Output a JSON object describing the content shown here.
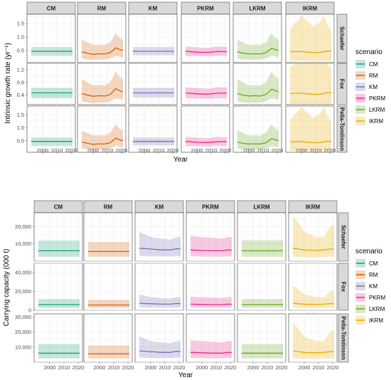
{
  "colors": {
    "CM": "#1b9e77",
    "RM": "#d95f02",
    "KM": "#7570b3",
    "PKRM": "#e7298a",
    "LKRM": "#66a61e",
    "IKRM": "#e6ab02"
  },
  "chart_data": [
    {
      "type": "line",
      "facet_columns": [
        "CM",
        "RM",
        "KM",
        "PKRM",
        "LKRM",
        "IKRM"
      ],
      "facet_rows": [
        "Schaefer",
        "Fox",
        "Pella-Tomlinson"
      ],
      "xlabel": "Year",
      "ylabel": "Intrinsic growth rate (yr⁻¹)",
      "x_ticks": [
        2000,
        2010,
        2020
      ],
      "x_range": [
        1989,
        2023
      ],
      "legend": {
        "title": "scenario",
        "entries": [
          "CM",
          "RM",
          "KM",
          "PKRM",
          "LKRM",
          "IKRM"
        ],
        "placement": "right"
      },
      "rows": [
        {
          "row": "Schaefer",
          "y_range": [
            0.05,
            1.85
          ],
          "y_ticks": [
            0.5,
            1.0,
            1.5
          ],
          "y_tick_labels": [
            "0.5",
            "1.0",
            "1.5"
          ]
        },
        {
          "row": "Fox",
          "y_range": [
            0.1,
            1.4
          ],
          "y_ticks": [
            0.4,
            0.8,
            1.2
          ],
          "y_tick_labels": [
            "0.4",
            "0.8",
            "1.2"
          ]
        },
        {
          "row": "Pella-Tomlinson",
          "y_range": [
            0.05,
            1.85
          ],
          "y_ticks": [
            0.5,
            1.0,
            1.5
          ],
          "y_tick_labels": [
            "0.5",
            "1.0",
            "1.5"
          ]
        }
      ],
      "series": [
        {
          "name": "CM",
          "x": [
            1992,
            2021
          ],
          "mean": [
            0.47,
            0.47
          ],
          "lower": [
            0.3,
            0.3
          ],
          "upper": [
            0.63,
            0.63
          ]
        },
        {
          "name": "RM",
          "x": [
            1992,
            1996,
            2000,
            2004,
            2008,
            2012,
            2016,
            2018,
            2021
          ],
          "mean": [
            0.45,
            0.4,
            0.36,
            0.38,
            0.37,
            0.42,
            0.6,
            0.55,
            0.5
          ],
          "lower": [
            0.2,
            0.17,
            0.15,
            0.16,
            0.16,
            0.2,
            0.3,
            0.28,
            0.25
          ],
          "upper": [
            0.9,
            0.8,
            0.7,
            0.72,
            0.7,
            0.8,
            1.15,
            1.0,
            0.9
          ]
        },
        {
          "name": "KM",
          "x": [
            1992,
            2021
          ],
          "mean": [
            0.47,
            0.47
          ],
          "lower": [
            0.32,
            0.32
          ],
          "upper": [
            0.63,
            0.63
          ]
        },
        {
          "name": "PKRM",
          "x": [
            1992,
            2000,
            2008,
            2014,
            2021
          ],
          "mean": [
            0.47,
            0.44,
            0.43,
            0.46,
            0.46
          ],
          "lower": [
            0.3,
            0.29,
            0.28,
            0.3,
            0.3
          ],
          "upper": [
            0.65,
            0.62,
            0.6,
            0.65,
            0.64
          ]
        },
        {
          "name": "LKRM",
          "x": [
            1992,
            1996,
            2000,
            2004,
            2008,
            2012,
            2016,
            2018,
            2021
          ],
          "mean": [
            0.45,
            0.4,
            0.37,
            0.38,
            0.37,
            0.42,
            0.58,
            0.55,
            0.5
          ],
          "lower": [
            0.2,
            0.17,
            0.16,
            0.16,
            0.16,
            0.2,
            0.3,
            0.28,
            0.25
          ],
          "upper": [
            0.9,
            0.8,
            0.7,
            0.72,
            0.7,
            0.8,
            1.15,
            1.0,
            0.9
          ]
        },
        {
          "name": "IKRM",
          "x": [
            1992,
            1996,
            2000,
            2004,
            2008,
            2012,
            2016,
            2018,
            2021
          ],
          "mean": [
            0.45,
            0.46,
            0.46,
            0.44,
            0.43,
            0.42,
            0.45,
            0.48,
            0.47
          ],
          "lower": [
            0.1,
            0.12,
            0.12,
            0.1,
            0.1,
            0.1,
            0.1,
            0.12,
            0.1
          ],
          "upper": [
            1.3,
            1.55,
            1.8,
            1.6,
            1.4,
            1.5,
            1.8,
            1.5,
            1.2
          ]
        }
      ]
    },
    {
      "type": "line",
      "facet_columns": [
        "CM",
        "RM",
        "KM",
        "PKRM",
        "LKRM",
        "IKRM"
      ],
      "facet_rows": [
        "Schaefer",
        "Fox",
        "Pella-Tomlinson"
      ],
      "xlabel": "Year",
      "ylabel": "Carrying capacity (000 t)",
      "x_ticks": [
        2000,
        2010,
        2020
      ],
      "x_range": [
        1989,
        2023
      ],
      "legend": {
        "title": "scenario",
        "entries": [
          "CM",
          "RM",
          "KM",
          "PKRM",
          "LKRM",
          "IKRM"
        ],
        "placement": "right"
      },
      "rows": [
        {
          "row": "Schaefer",
          "y_range": [
            0,
            28000
          ],
          "y_ticks": [
            10000,
            20000
          ],
          "y_tick_labels": [
            "10,000",
            "20,000"
          ]
        },
        {
          "row": "Fox",
          "y_range": [
            0,
            50000
          ],
          "y_ticks": [
            0,
            20000,
            40000
          ],
          "y_tick_labels": [
            "0",
            "20,000",
            "40,000"
          ]
        },
        {
          "row": "Pella-Tomlinson",
          "y_range": [
            0,
            32000
          ],
          "y_ticks": [
            10000,
            20000,
            30000
          ],
          "y_tick_labels": [
            "10,000",
            "20,000",
            "30,000"
          ]
        }
      ],
      "series": [
        {
          "name": "CM",
          "x": [
            1992,
            2021
          ],
          "mean": [
            6000,
            6000
          ],
          "lower": [
            2500,
            2500
          ],
          "upper": [
            12000,
            12000
          ]
        },
        {
          "name": "RM",
          "x": [
            1992,
            2021
          ],
          "mean": [
            5600,
            5600
          ],
          "lower": [
            2500,
            2500
          ],
          "upper": [
            11000,
            11000
          ]
        },
        {
          "name": "KM",
          "x": [
            1992,
            2000,
            2008,
            2014,
            2018,
            2021
          ],
          "mean": [
            7500,
            7000,
            6500,
            6500,
            7200,
            7000
          ],
          "lower": [
            3000,
            2800,
            2700,
            2700,
            3000,
            2900
          ],
          "upper": [
            17000,
            14000,
            13000,
            12500,
            14000,
            14000
          ]
        },
        {
          "name": "PKRM",
          "x": [
            1992,
            2000,
            2008,
            2014,
            2018,
            2021
          ],
          "mean": [
            6500,
            6200,
            6000,
            6000,
            6500,
            6400
          ],
          "lower": [
            2800,
            2700,
            2600,
            2600,
            2800,
            2700
          ],
          "upper": [
            14500,
            14000,
            13500,
            13000,
            14000,
            14000
          ]
        },
        {
          "name": "LKRM",
          "x": [
            1992,
            2021
          ],
          "mean": [
            6000,
            6000
          ],
          "lower": [
            2500,
            2500
          ],
          "upper": [
            12000,
            12000
          ]
        },
        {
          "name": "IKRM",
          "x": [
            1992,
            1996,
            2000,
            2008,
            2014,
            2018,
            2021
          ],
          "mean": [
            7500,
            7000,
            6500,
            6200,
            6500,
            7000,
            7000
          ],
          "lower": [
            2500,
            2400,
            2300,
            2200,
            2300,
            2500,
            2500
          ],
          "upper": [
            26000,
            22000,
            17000,
            14000,
            14000,
            20000,
            21000
          ]
        }
      ]
    }
  ]
}
